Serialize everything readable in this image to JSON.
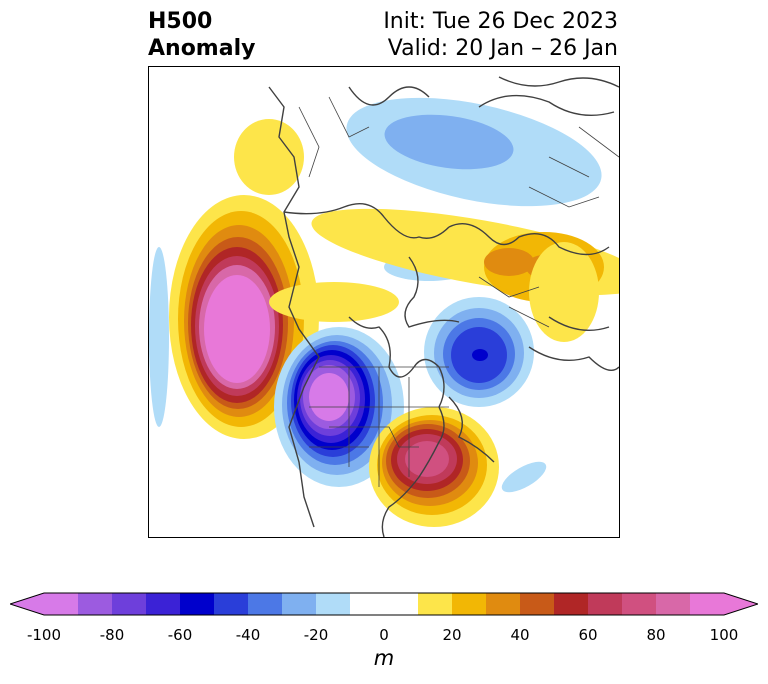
{
  "title": {
    "left_line1": "H500",
    "left_line2": "Anomaly",
    "right_line1": "Init: Tue 26 Dec 2023",
    "right_line2": "Valid: 20 Jan – 26 Jan"
  },
  "colorbar": {
    "units": "m",
    "min": -100,
    "max": 100,
    "step": 10,
    "ticks": [
      "-100",
      "-80",
      "-60",
      "-40",
      "-20",
      "0",
      "20",
      "40",
      "60",
      "80",
      "100"
    ],
    "colors": [
      "#d77ae8",
      "#9c5be0",
      "#6e3fdb",
      "#3b22d6",
      "#0000cc",
      "#2a3ed9",
      "#4c78e6",
      "#7fb0f0",
      "#b0dcf8",
      "#ffffff",
      "#ffffff",
      "#fde54a",
      "#f2b705",
      "#e08b10",
      "#c85a18",
      "#b02626",
      "#c03a5a",
      "#d05080",
      "#d868a8",
      "#e878d8"
    ]
  }
}
